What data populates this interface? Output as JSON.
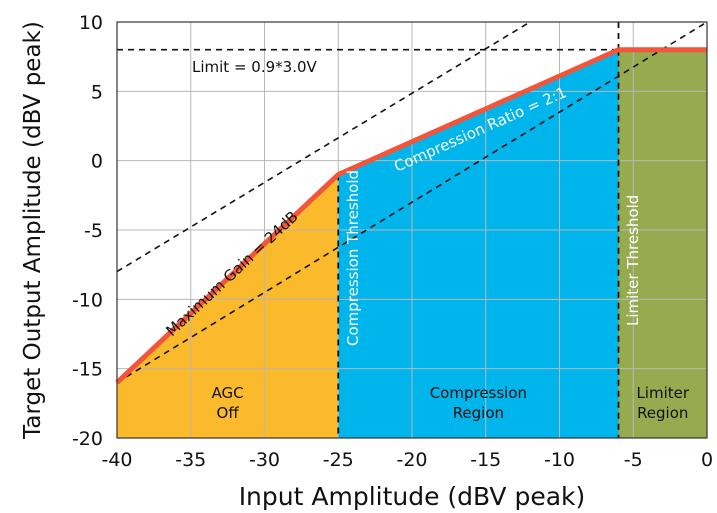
{
  "chart_data": {
    "type": "line",
    "xlabel": "Input Amplitude (dBV peak)",
    "ylabel": "Target Output Amplitude (dBV peak)",
    "xlim": [
      -40,
      0
    ],
    "ylim": [
      -20,
      10
    ],
    "xticks": [
      -40,
      -35,
      -30,
      -25,
      -20,
      -15,
      -10,
      -5,
      0
    ],
    "yticks": [
      10,
      5,
      0,
      -5,
      -10,
      -15,
      -20
    ],
    "grid": true,
    "series": [
      {
        "x": [
          -40,
          -25,
          -6,
          0
        ],
        "y": [
          -16,
          -1,
          8,
          8
        ],
        "color": "#f2553a"
      }
    ],
    "reference_lines": [
      {
        "x": [
          -40,
          0
        ],
        "y": [
          8,
          8
        ]
      },
      {
        "x": [
          -40,
          -12
        ],
        "y": [
          -8,
          10
        ]
      },
      {
        "x": [
          -40,
          0
        ],
        "y": [
          -16,
          10
        ]
      },
      {
        "x": [
          -25,
          -6
        ],
        "y": [
          -1,
          8
        ]
      }
    ],
    "thresholds": [
      -25,
      -6
    ],
    "regions": [
      {
        "label_lines": [
          "AGC",
          "Off"
        ],
        "x": [
          -40,
          -25
        ],
        "color": "#fbb92c",
        "text_color": "#111111"
      },
      {
        "label_lines": [
          "Compression",
          "Region"
        ],
        "x": [
          -25,
          -6
        ],
        "color": "#00b4ec",
        "text_color": "#ffffff"
      },
      {
        "label_lines": [
          "Limiter",
          "Region"
        ],
        "x": [
          -6,
          0
        ],
        "color": "#98aa50",
        "text_color": "#ffffff"
      }
    ],
    "annotations": {
      "limit": "Limit = 0.9*3.0V",
      "compression_ratio": "Compression Ratio = 2:1",
      "max_gain": "Maximum Gain = 24dB",
      "compression_threshold": "Compression Threshold",
      "limiter_threshold": "Limiter Threshold"
    },
    "colors": {
      "curve": "#f2553a",
      "grid": "#b8b8b8",
      "frame": "#333333"
    }
  }
}
